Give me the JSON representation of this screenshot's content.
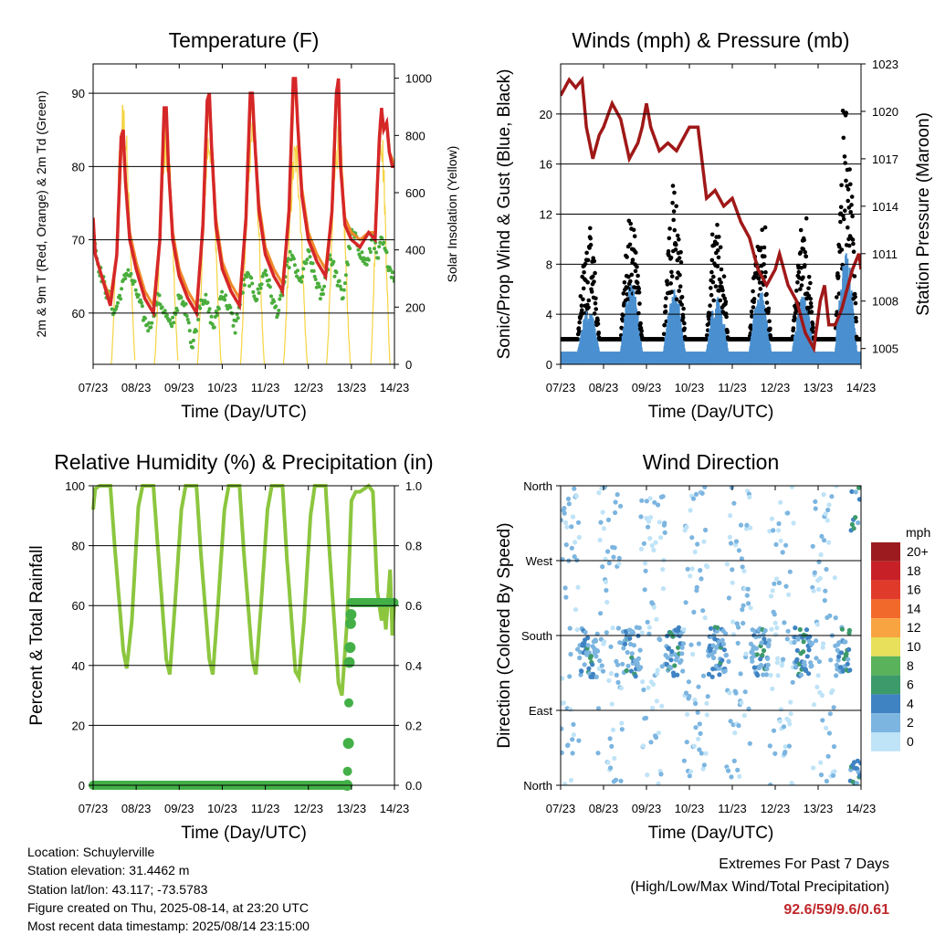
{
  "chart_data": [
    {
      "type": "line",
      "title": "Temperature (F)",
      "xlabel": "Time (Day/UTC)",
      "ylabel": "2m & 9m T (Red, Orange) & 2m Td (Green)",
      "ylabel_right": "Solar Insolation (Yellow)",
      "x_ticks": [
        "07/23",
        "08/23",
        "09/23",
        "10/23",
        "11/23",
        "12/23",
        "13/23",
        "14/23"
      ],
      "xlim": [
        0,
        7
      ],
      "ylim": [
        53,
        94
      ],
      "y_ticks": [
        60,
        70,
        80,
        90
      ],
      "y2lim": [
        0,
        1050
      ],
      "y2_ticks": [
        0,
        200,
        400,
        600,
        800,
        1000
      ],
      "grid": true,
      "colors": {
        "t2m": "#d62728",
        "t9m": "#f08a2a",
        "td": "#4aad3c",
        "solar": "#f5d442"
      },
      "series": [
        {
          "key": "t2m",
          "x": [
            0,
            0.05,
            0.2,
            0.4,
            0.55,
            0.65,
            0.7,
            0.75,
            0.85,
            1.0,
            1.2,
            1.4,
            1.55,
            1.65,
            1.7,
            1.75,
            1.85,
            2.0,
            2.2,
            2.4,
            2.55,
            2.65,
            2.7,
            2.75,
            2.85,
            3.0,
            3.2,
            3.4,
            3.55,
            3.65,
            3.7,
            3.75,
            3.85,
            4.0,
            4.2,
            4.4,
            4.55,
            4.65,
            4.7,
            4.75,
            4.85,
            5.0,
            5.2,
            5.4,
            5.55,
            5.65,
            5.7,
            5.75,
            5.85,
            6.0,
            6.2,
            6.4,
            6.55,
            6.65,
            6.7,
            6.75,
            6.82,
            6.88,
            6.95,
            7.0
          ],
          "y": [
            73,
            68,
            65,
            61,
            68,
            84,
            85,
            78,
            70,
            66,
            62,
            60,
            70,
            88,
            88,
            80,
            70,
            65,
            62,
            60,
            72,
            89,
            90,
            83,
            72,
            66,
            63,
            61,
            73,
            90,
            90,
            84,
            74,
            68,
            65,
            63,
            74,
            92,
            92,
            86,
            76,
            70,
            67,
            65,
            74,
            90,
            92,
            80,
            72,
            70,
            69,
            71,
            70,
            84,
            88,
            85,
            86,
            82,
            80,
            80
          ]
        },
        {
          "key": "t9m",
          "x": [
            0,
            0.05,
            0.2,
            0.4,
            0.55,
            0.65,
            0.7,
            0.75,
            0.85,
            1.0,
            1.2,
            1.4,
            1.55,
            1.65,
            1.7,
            1.75,
            1.85,
            2.0,
            2.2,
            2.4,
            2.55,
            2.65,
            2.7,
            2.75,
            2.85,
            3.0,
            3.2,
            3.4,
            3.55,
            3.65,
            3.7,
            3.75,
            3.85,
            4.0,
            4.2,
            4.4,
            4.55,
            4.65,
            4.7,
            4.75,
            4.85,
            5.0,
            5.2,
            5.4,
            5.55,
            5.65,
            5.7,
            5.75,
            5.85,
            6.0,
            6.2,
            6.4,
            6.55,
            6.65,
            6.7,
            6.75,
            6.82,
            6.88,
            6.95,
            7.0
          ],
          "y": [
            72,
            68,
            65,
            62,
            68,
            82,
            84,
            78,
            71,
            67,
            63,
            61,
            70,
            86,
            87,
            80,
            71,
            66,
            63,
            61,
            71,
            87,
            89,
            83,
            73,
            67,
            64,
            62,
            72,
            88,
            89,
            84,
            75,
            69,
            66,
            64,
            73,
            90,
            91,
            86,
            77,
            71,
            68,
            66,
            74,
            89,
            91,
            80,
            73,
            71,
            70,
            71,
            71,
            83,
            87,
            85,
            86,
            82,
            81,
            80
          ]
        },
        {
          "key": "td",
          "x": [
            0,
            0.1,
            0.3,
            0.5,
            0.6,
            0.8,
            1.0,
            1.2,
            1.3,
            1.5,
            1.6,
            1.8,
            2.0,
            2.2,
            2.3,
            2.5,
            2.6,
            2.8,
            3.0,
            3.2,
            3.3,
            3.5,
            3.6,
            3.8,
            4.0,
            4.2,
            4.3,
            4.5,
            4.6,
            4.8,
            5.0,
            5.2,
            5.3,
            5.5,
            5.6,
            5.8,
            6.0,
            6.1,
            6.3,
            6.4,
            6.5,
            6.6,
            6.7,
            6.8,
            6.9,
            7.0
          ],
          "y": [
            72,
            67,
            63,
            60,
            62,
            66,
            63,
            59,
            58,
            62,
            61,
            58,
            62,
            60,
            55,
            62,
            62,
            58,
            63,
            60,
            58,
            64,
            65,
            62,
            66,
            61,
            60,
            66,
            68,
            64,
            68,
            64,
            62,
            68,
            66,
            62,
            71,
            70,
            67,
            67,
            71,
            67,
            70,
            68,
            66,
            65
          ]
        },
        {
          "key": "solar",
          "axis": "right",
          "peaks": [
            {
              "start": 0.42,
              "end": 0.98,
              "max": 930
            },
            {
              "start": 1.42,
              "end": 1.98,
              "max": 840
            },
            {
              "start": 2.42,
              "end": 2.98,
              "max": 860
            },
            {
              "start": 3.42,
              "end": 3.98,
              "max": 900
            },
            {
              "start": 4.42,
              "end": 4.98,
              "max": 800
            },
            {
              "start": 5.42,
              "end": 5.98,
              "max": 860
            },
            {
              "start": 6.45,
              "end": 6.9,
              "max": 900
            }
          ]
        }
      ]
    },
    {
      "type": "scatter",
      "title": "Winds (mph) & Pressure (mb)",
      "xlabel": "Time (Day/UTC)",
      "ylabel": "Sonic/Prop Wind & Gust (Blue, Black)",
      "ylabel_right": "Station Pressure (Maroon)",
      "x_ticks": [
        "07/23",
        "08/23",
        "09/23",
        "10/23",
        "11/23",
        "12/23",
        "13/23",
        "14/23"
      ],
      "xlim": [
        0,
        7
      ],
      "ylim": [
        0,
        24
      ],
      "y_ticks": [
        0,
        4,
        8,
        12,
        16,
        20
      ],
      "y2lim": [
        1004,
        1023
      ],
      "y2_ticks": [
        1005,
        1008,
        1011,
        1014,
        1017,
        1020,
        1023
      ],
      "grid": true,
      "colors": {
        "wind": "#4a90d0",
        "gust": "#000000",
        "pressure": "#a01818"
      },
      "wind_daily_peak": [
        4.5,
        6.5,
        6,
        5.5,
        6,
        5.5,
        9,
        5
      ],
      "gust_daily_peak": [
        12,
        10,
        15.5,
        11,
        10,
        10,
        21.5,
        14
      ],
      "pressure": {
        "x": [
          0,
          0.2,
          0.35,
          0.5,
          0.6,
          0.75,
          0.9,
          1.0,
          1.2,
          1.4,
          1.6,
          1.8,
          1.9,
          2.0,
          2.1,
          2.3,
          2.5,
          2.7,
          2.8,
          3.0,
          3.2,
          3.4,
          3.6,
          3.8,
          4.0,
          4.2,
          4.4,
          4.6,
          4.8,
          5.0,
          5.1,
          5.3,
          5.5,
          5.7,
          5.9,
          6.0,
          6.05,
          6.15,
          6.25,
          6.4,
          6.55,
          6.7,
          6.8,
          6.95,
          7.0
        ],
        "y": [
          1021,
          1022,
          1021.5,
          1022,
          1019,
          1017,
          1018.5,
          1019,
          1020.5,
          1019.5,
          1017,
          1018,
          1019,
          1020.5,
          1019,
          1017.5,
          1018,
          1017.5,
          1018,
          1019,
          1019,
          1014.5,
          1015,
          1014,
          1014.5,
          1013,
          1012,
          1010,
          1009,
          1010,
          1011,
          1009,
          1008,
          1006,
          1005,
          1007,
          1008,
          1009,
          1006.5,
          1006.5,
          1007.5,
          1009,
          1010,
          1011,
          1010
        ]
      }
    },
    {
      "type": "line",
      "title": "Relative Humidity (%) & Precipitation (in)",
      "xlabel": "Time (Day/UTC)",
      "ylabel": "Percent & Total Rainfall",
      "x_ticks": [
        "07/23",
        "08/23",
        "09/23",
        "10/23",
        "11/23",
        "12/23",
        "13/23",
        "14/23"
      ],
      "xlim": [
        0,
        7
      ],
      "ylim": [
        0,
        100
      ],
      "y_ticks": [
        0,
        20,
        40,
        60,
        80,
        100
      ],
      "y2lim": [
        0,
        1.0
      ],
      "y2_ticks": [
        "0.0",
        "0.2",
        "0.4",
        "0.6",
        "0.8",
        "1.0"
      ],
      "grid": true,
      "colors": {
        "rh": "#8cc63f",
        "precip": "#43b047"
      },
      "series": [
        {
          "key": "rh",
          "name": "Relative Humidity",
          "x": [
            0,
            0.05,
            0.15,
            0.4,
            0.5,
            0.7,
            0.78,
            0.9,
            1.05,
            1.15,
            1.4,
            1.5,
            1.7,
            1.78,
            1.9,
            2.05,
            2.15,
            2.4,
            2.5,
            2.7,
            2.78,
            2.9,
            3.05,
            3.15,
            3.4,
            3.5,
            3.7,
            3.78,
            3.9,
            4.05,
            4.15,
            4.4,
            4.5,
            4.7,
            4.78,
            4.9,
            5.05,
            5.15,
            5.4,
            5.5,
            5.7,
            5.78,
            5.9,
            6.0,
            6.1,
            6.2,
            6.4,
            6.5,
            6.6,
            6.7,
            6.75,
            6.8,
            6.9,
            6.95,
            7.0
          ],
          "y": [
            92,
            99,
            100,
            100,
            80,
            45,
            39,
            55,
            93,
            100,
            100,
            80,
            42,
            37,
            60,
            92,
            100,
            100,
            78,
            42,
            37,
            60,
            92,
            100,
            100,
            78,
            42,
            37,
            60,
            92,
            100,
            100,
            76,
            38,
            36,
            55,
            90,
            100,
            100,
            76,
            34,
            30,
            55,
            95,
            98,
            98,
            100,
            98,
            65,
            55,
            60,
            52,
            72,
            50,
            62
          ]
        },
        {
          "key": "precip",
          "name": "Total Precipitation",
          "axis": "right",
          "x": [
            0,
            5.9,
            5.93,
            5.95,
            5.97,
            5.98,
            5.99,
            6.0,
            7.0
          ],
          "y": [
            0,
            0,
            0.14,
            0.41,
            0.46,
            0.54,
            0.57,
            0.61,
            0.61
          ]
        }
      ]
    },
    {
      "type": "scatter",
      "title": "Wind Direction",
      "xlabel": "Time (Day/UTC)",
      "ylabel": "Direction (Colored By Speed)",
      "x_ticks": [
        "07/23",
        "08/23",
        "09/23",
        "10/23",
        "11/23",
        "12/23",
        "13/23",
        "14/23"
      ],
      "xlim": [
        0,
        7
      ],
      "ylim": [
        0,
        360
      ],
      "y_tick_labels": [
        "North",
        "East",
        "South",
        "West",
        "North"
      ],
      "y_tick_values": [
        0,
        90,
        180,
        270,
        360
      ],
      "grid": true,
      "legend": {
        "title": "mph",
        "position": "right",
        "labels": [
          "20+",
          "18",
          "16",
          "14",
          "12",
          "10",
          "8",
          "6",
          "4",
          "2",
          "0"
        ],
        "colors": [
          "#9b1b1e",
          "#c72127",
          "#e03b2a",
          "#f26a2b",
          "#f8a440",
          "#e8df5a",
          "#5ab25a",
          "#3d9a6a",
          "#3f83c3",
          "#7cb5e0",
          "#bfe3f7"
        ]
      },
      "daily_mean_direction": [
        160,
        160,
        160,
        160,
        160,
        160,
        160,
        20
      ]
    }
  ],
  "info": {
    "location": "Location: Schuylerville",
    "elevation": "Station elevation: 31.4462 m",
    "latlon": "Station lat/lon: 43.117; -73.5783",
    "created": "Figure created on Thu, 2025-08-14, at 23:20 UTC",
    "recent": "Most recent data timestamp: 2025/08/14 23:15:00"
  },
  "extremes": {
    "title": "Extremes For Past 7 Days",
    "subtitle": "(High/Low/Max Wind/Total Precipitation)",
    "values": "92.6/59/9.6/0.61"
  }
}
